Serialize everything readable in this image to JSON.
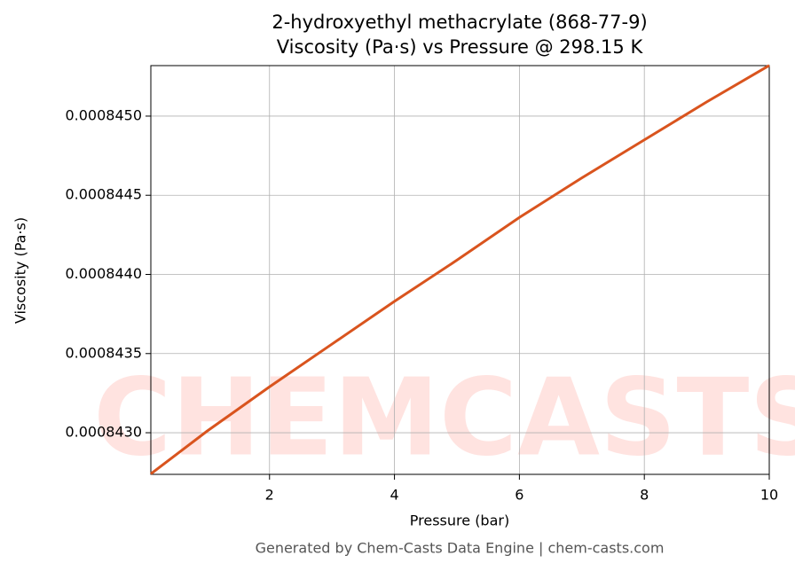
{
  "chart_data": {
    "type": "line",
    "title": "2-hydroxyethyl methacrylate (868-77-9)",
    "subtitle": "Viscosity (Pa·s) vs Pressure @ 298.15 K",
    "x_label": "Pressure (bar)",
    "y_label": "Viscosity (Pa·s)",
    "footer": "Generated by Chem-Casts Data Engine | chem-casts.com",
    "watermark": "CHEMCASTS",
    "x": [
      0.1,
      1,
      2,
      3,
      4,
      5,
      6,
      7,
      8,
      9,
      10
    ],
    "series": [
      {
        "name": "Viscosity",
        "color": "#d9541e",
        "values": [
          0.00084274,
          0.00084301,
          0.00084329,
          0.00084356,
          0.00084383,
          0.00084409,
          0.00084436,
          0.00084461,
          0.00084485,
          0.00084509,
          0.00084532
        ]
      }
    ],
    "xlim": [
      0.1,
      10
    ],
    "ylim": [
      0.000842737,
      0.000845319
    ],
    "xticks": [
      2,
      4,
      6,
      8,
      10
    ],
    "yticks": [
      {
        "value": 0.000843,
        "label": "0.0008430"
      },
      {
        "value": 0.0008435,
        "label": "0.0008435"
      },
      {
        "value": 0.000844,
        "label": "0.0008440"
      },
      {
        "value": 0.0008445,
        "label": "0.0008445"
      },
      {
        "value": 0.000845,
        "label": "0.0008450"
      }
    ],
    "grid": true
  }
}
